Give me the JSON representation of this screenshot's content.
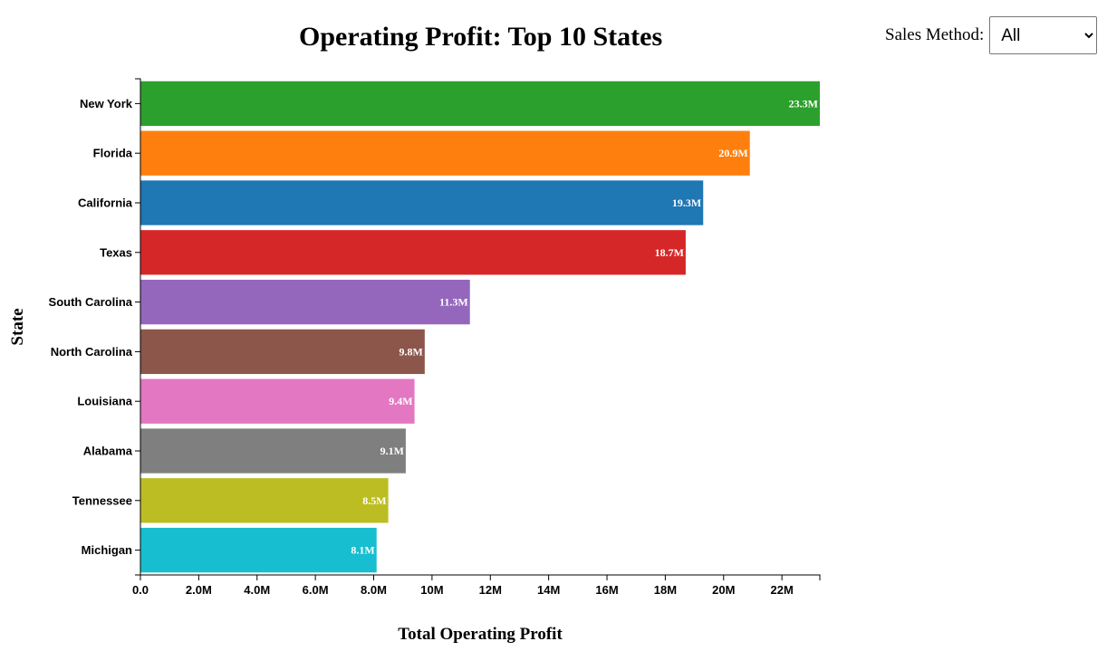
{
  "controls": {
    "sales_method_label": "Sales Method:",
    "sales_method_selected": "All",
    "sales_method_options": [
      "All"
    ]
  },
  "chart_data": {
    "type": "bar",
    "orientation": "horizontal",
    "title": "Operating Profit: Top 10 States",
    "xlabel": "Total Operating Profit",
    "ylabel": "State",
    "categories": [
      "New York",
      "Florida",
      "California",
      "Texas",
      "South Carolina",
      "North Carolina",
      "Louisiana",
      "Alabama",
      "Tennessee",
      "Michigan"
    ],
    "values": [
      23.3,
      20.9,
      19.3,
      18.7,
      11.3,
      9.75,
      9.4,
      9.1,
      8.5,
      8.1
    ],
    "value_labels": [
      "23.3M",
      "20.9M",
      "19.3M",
      "18.7M",
      "11.3M",
      "9.8M",
      "9.4M",
      "9.1M",
      "8.5M",
      "8.1M"
    ],
    "value_unit": "millions",
    "colors": [
      "#2ca02c",
      "#ff7f0e",
      "#1f77b4",
      "#d62728",
      "#9467bd",
      "#8c564b",
      "#e377c2",
      "#7f7f7f",
      "#bcbd22",
      "#17becf"
    ],
    "x_ticks": [
      {
        "value": 0,
        "label": "0.0"
      },
      {
        "value": 2,
        "label": "2.0M"
      },
      {
        "value": 4,
        "label": "4.0M"
      },
      {
        "value": 6,
        "label": "6.0M"
      },
      {
        "value": 8,
        "label": "8.0M"
      },
      {
        "value": 10,
        "label": "10M"
      },
      {
        "value": 12,
        "label": "12M"
      },
      {
        "value": 14,
        "label": "14M"
      },
      {
        "value": 16,
        "label": "16M"
      },
      {
        "value": 18,
        "label": "18M"
      },
      {
        "value": 20,
        "label": "20M"
      },
      {
        "value": 22,
        "label": "22M"
      }
    ],
    "xlim": [
      0,
      23.3
    ],
    "grid": false,
    "legend": "none"
  }
}
